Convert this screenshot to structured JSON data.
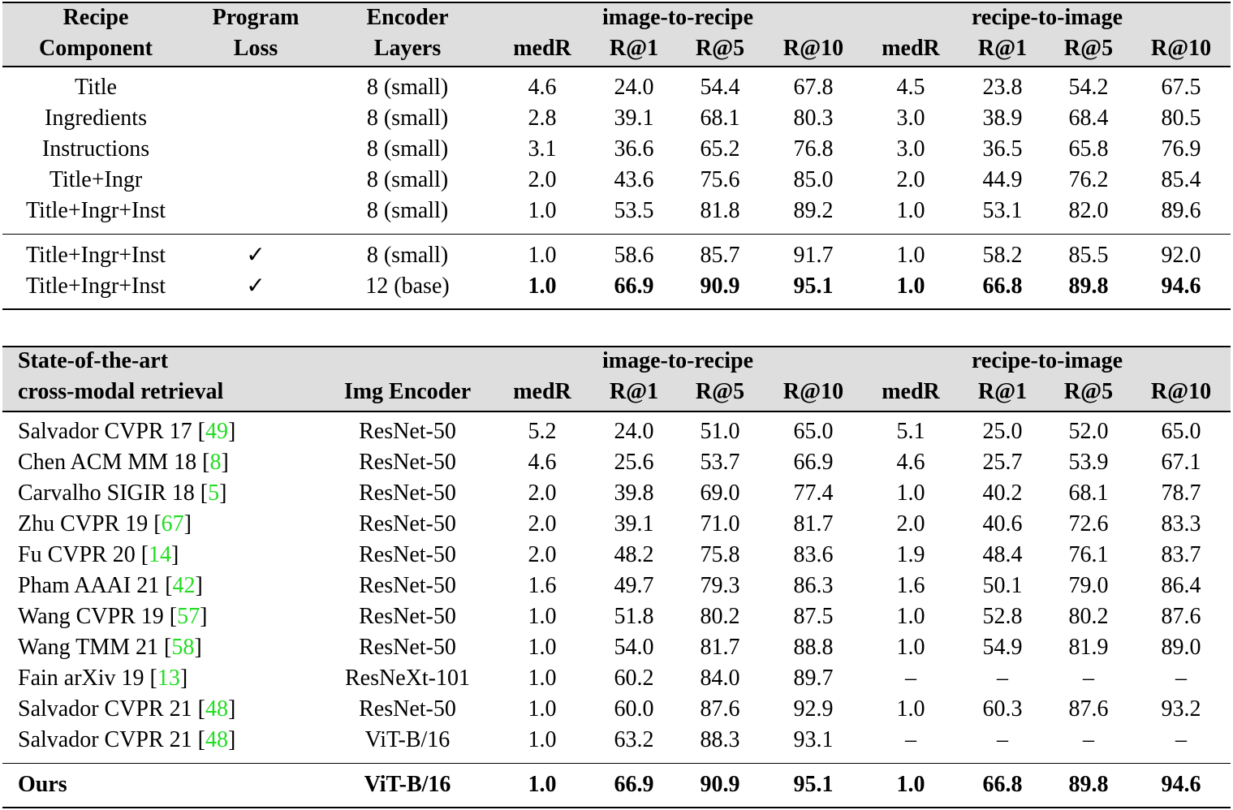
{
  "table1": {
    "header": {
      "columns": [
        [
          "Recipe",
          "Component"
        ],
        [
          "Program",
          "Loss"
        ],
        [
          "Encoder",
          "Layers"
        ]
      ],
      "groups": [
        "image-to-recipe",
        "recipe-to-image"
      ],
      "metrics": [
        "medR",
        "R@1",
        "R@5",
        "R@10",
        "medR",
        "R@1",
        "R@5",
        "R@10"
      ]
    },
    "sections": [
      [
        {
          "component": "Title",
          "encoder": "8 (small)",
          "values": [
            "4.6",
            "24.0",
            "54.4",
            "67.8",
            "4.5",
            "23.8",
            "54.2",
            "67.5"
          ]
        },
        {
          "component": "Ingredients",
          "encoder": "8 (small)",
          "values": [
            "2.8",
            "39.1",
            "68.1",
            "80.3",
            "3.0",
            "38.9",
            "68.4",
            "80.5"
          ]
        },
        {
          "component": "Instructions",
          "encoder": "8 (small)",
          "values": [
            "3.1",
            "36.6",
            "65.2",
            "76.8",
            "3.0",
            "36.5",
            "65.8",
            "76.9"
          ]
        },
        {
          "component": "Title+Ingr",
          "encoder": "8 (small)",
          "values": [
            "2.0",
            "43.6",
            "75.6",
            "85.0",
            "2.0",
            "44.9",
            "76.2",
            "85.4"
          ]
        },
        {
          "component": "Title+Ingr+Inst",
          "encoder": "8 (small)",
          "values": [
            "1.0",
            "53.5",
            "81.8",
            "89.2",
            "1.0",
            "53.1",
            "82.0",
            "89.6"
          ]
        }
      ],
      [
        {
          "component": "Title+Ingr+Inst",
          "program_loss": "✓",
          "encoder": "8 (small)",
          "values": [
            "1.0",
            "58.6",
            "85.7",
            "91.7",
            "1.0",
            "58.2",
            "85.5",
            "92.0"
          ]
        },
        {
          "component": "Title+Ingr+Inst",
          "program_loss": "✓",
          "encoder": "12 (base)",
          "values": [
            "1.0",
            "66.9",
            "90.9",
            "95.1",
            "1.0",
            "66.8",
            "89.8",
            "94.6"
          ],
          "bold_values": true
        }
      ]
    ]
  },
  "table2": {
    "header": {
      "columns": [
        [
          "State-of-the-art",
          "cross-modal retrieval"
        ],
        [
          "Img Encoder"
        ]
      ],
      "groups": [
        "image-to-recipe",
        "recipe-to-image"
      ],
      "metrics": [
        "medR",
        "R@1",
        "R@5",
        "R@10",
        "medR",
        "R@1",
        "R@5",
        "R@10"
      ]
    },
    "ref_color": "#22dd22",
    "rows": [
      {
        "method": [
          "Salvador CVPR 17 [",
          "49",
          "]"
        ],
        "encoder": "ResNet-50",
        "values": [
          "5.2",
          "24.0",
          "51.0",
          "65.0",
          "5.1",
          "25.0",
          "52.0",
          "65.0"
        ]
      },
      {
        "method": [
          "Chen ACM MM 18 [",
          "8",
          "]"
        ],
        "encoder": "ResNet-50",
        "values": [
          "4.6",
          "25.6",
          "53.7",
          "66.9",
          "4.6",
          "25.7",
          "53.9",
          "67.1"
        ]
      },
      {
        "method": [
          "Carvalho SIGIR 18 [",
          "5",
          "]"
        ],
        "encoder": "ResNet-50",
        "values": [
          "2.0",
          "39.8",
          "69.0",
          "77.4",
          "1.0",
          "40.2",
          "68.1",
          "78.7"
        ]
      },
      {
        "method": [
          "Zhu CVPR 19 [",
          "67",
          "]"
        ],
        "encoder": "ResNet-50",
        "values": [
          "2.0",
          "39.1",
          "71.0",
          "81.7",
          "2.0",
          "40.6",
          "72.6",
          "83.3"
        ]
      },
      {
        "method": [
          "Fu CVPR 20 [",
          "14",
          "]"
        ],
        "encoder": "ResNet-50",
        "values": [
          "2.0",
          "48.2",
          "75.8",
          "83.6",
          "1.9",
          "48.4",
          "76.1",
          "83.7"
        ]
      },
      {
        "method": [
          "Pham AAAI 21 [",
          "42",
          "]"
        ],
        "encoder": "ResNet-50",
        "values": [
          "1.6",
          "49.7",
          "79.3",
          "86.3",
          "1.6",
          "50.1",
          "79.0",
          "86.4"
        ]
      },
      {
        "method": [
          "Wang CVPR 19 [",
          "57",
          "]"
        ],
        "encoder": "ResNet-50",
        "values": [
          "1.0",
          "51.8",
          "80.2",
          "87.5",
          "1.0",
          "52.8",
          "80.2",
          "87.6"
        ]
      },
      {
        "method": [
          "Wang TMM 21 [",
          "58",
          "]"
        ],
        "encoder": "ResNet-50",
        "values": [
          "1.0",
          "54.0",
          "81.7",
          "88.8",
          "1.0",
          "54.9",
          "81.9",
          "89.0"
        ]
      },
      {
        "method": [
          "Fain arXiv 19 [",
          "13",
          "]"
        ],
        "encoder": "ResNeXt-101",
        "values": [
          "1.0",
          "60.2",
          "84.0",
          "89.7",
          "–",
          "–",
          "–",
          "–"
        ]
      },
      {
        "method": [
          "Salvador CVPR 21 [",
          "48",
          "]"
        ],
        "encoder": "ResNet-50",
        "values": [
          "1.0",
          "60.0",
          "87.6",
          "92.9",
          "1.0",
          "60.3",
          "87.6",
          "93.2"
        ]
      },
      {
        "method": [
          "Salvador CVPR 21 [",
          "48",
          "]"
        ],
        "encoder": "ViT-B/16",
        "values": [
          "1.0",
          "63.2",
          "88.3",
          "93.1",
          "–",
          "–",
          "–",
          "–"
        ]
      }
    ],
    "ours": {
      "method": "Ours",
      "encoder": "ViT-B/16",
      "values": [
        "1.0",
        "66.9",
        "90.9",
        "95.1",
        "1.0",
        "66.8",
        "89.8",
        "94.6"
      ]
    }
  }
}
